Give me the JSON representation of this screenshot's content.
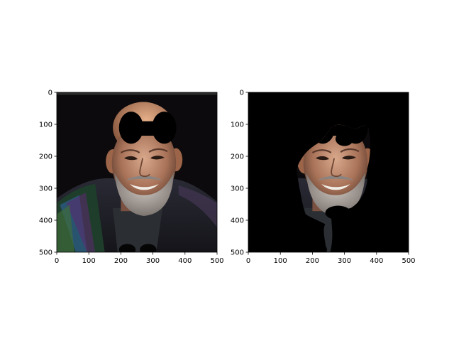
{
  "chart_data": [
    {
      "type": "image",
      "content": "photo",
      "xlim": [
        0,
        500
      ],
      "ylim": [
        500,
        0
      ],
      "x_ticks": [
        0,
        100,
        200,
        300,
        400,
        500
      ],
      "y_ticks": [
        0,
        100,
        200,
        300,
        400,
        500
      ],
      "x_tick_labels": [
        "0",
        "100",
        "200",
        "300",
        "400",
        "500"
      ],
      "y_tick_labels": [
        "0",
        "100",
        "200",
        "300",
        "400",
        "500"
      ],
      "title": "",
      "xlabel": "",
      "ylabel": ""
    },
    {
      "type": "image",
      "content": "masked photo",
      "xlim": [
        0,
        500
      ],
      "ylim": [
        500,
        0
      ],
      "x_ticks": [
        0,
        100,
        200,
        300,
        400,
        500
      ],
      "y_ticks": [
        0,
        100,
        200,
        300,
        400,
        500
      ],
      "x_tick_labels": [
        "0",
        "100",
        "200",
        "300",
        "400",
        "500"
      ],
      "y_tick_labels": [
        "0",
        "100",
        "200",
        "300",
        "400",
        "500"
      ],
      "title": "",
      "xlabel": "",
      "ylabel": ""
    }
  ]
}
